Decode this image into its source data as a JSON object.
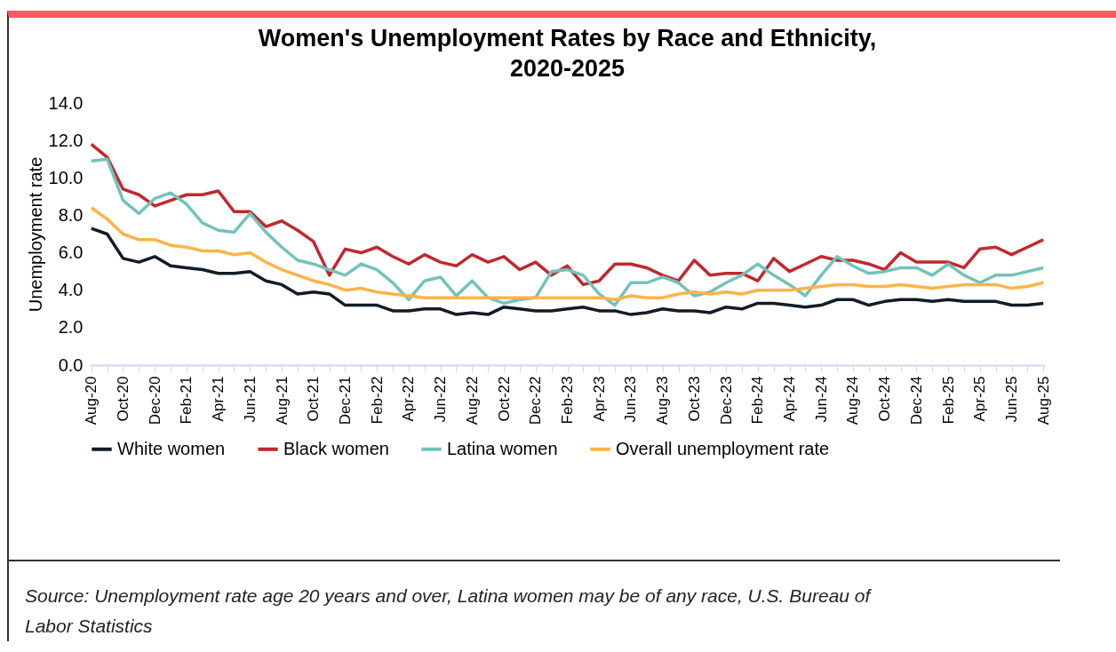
{
  "chart_data": {
    "type": "line",
    "title": "Women's Unemployment Rates by Race and Ethnicity, 2020-2025",
    "ylabel": "Unemployment rate",
    "categories": [
      "Aug-20",
      null,
      "Oct-20",
      null,
      "Dec-20",
      null,
      "Feb-21",
      null,
      "Apr-21",
      null,
      "Jun-21",
      null,
      "Aug-21",
      null,
      "Oct-21",
      null,
      "Dec-21",
      null,
      "Feb-22",
      null,
      "Apr-22",
      null,
      "Jun-22",
      null,
      "Aug-22",
      null,
      "Oct-22",
      null,
      "Dec-22",
      null,
      "Feb-23",
      null,
      "Apr-23",
      null,
      "Jun-23",
      null,
      "Aug-23",
      null,
      "Oct-23",
      null,
      "Dec-23",
      null,
      "Feb-24",
      null,
      "Apr-24",
      null,
      "Jun-24",
      null,
      "Aug-24",
      null,
      "Oct-24",
      null,
      "Dec-24",
      null,
      "Feb-25",
      null,
      "Apr-25",
      null,
      "Jun-25",
      null,
      "Aug-25"
    ],
    "series": [
      {
        "name": "White women",
        "color": "#111c26",
        "values": [
          7.3,
          7.0,
          5.7,
          5.5,
          5.8,
          5.3,
          5.2,
          5.1,
          4.9,
          4.9,
          5.0,
          4.5,
          4.3,
          3.8,
          3.9,
          3.8,
          3.2,
          3.2,
          3.2,
          2.9,
          2.9,
          3.0,
          3.0,
          2.7,
          2.8,
          2.7,
          3.1,
          3.0,
          2.9,
          2.9,
          3.0,
          3.1,
          2.9,
          2.9,
          2.7,
          2.8,
          3.0,
          2.9,
          2.9,
          2.8,
          3.1,
          3.0,
          3.3,
          3.3,
          3.2,
          3.1,
          3.2,
          3.5,
          3.5,
          3.2,
          3.4,
          3.5,
          3.5,
          3.4,
          3.5,
          3.4,
          3.4,
          3.4,
          3.2,
          3.2,
          3.3
        ]
      },
      {
        "name": "Black women",
        "color": "#c0282d",
        "values": [
          11.8,
          11.1,
          9.4,
          9.1,
          8.5,
          8.8,
          9.1,
          9.1,
          9.3,
          8.2,
          8.2,
          7.4,
          7.7,
          7.2,
          6.6,
          4.8,
          6.2,
          6.0,
          6.3,
          5.8,
          5.4,
          5.9,
          5.5,
          5.3,
          5.9,
          5.5,
          5.8,
          5.1,
          5.5,
          4.8,
          5.3,
          4.3,
          4.5,
          5.4,
          5.4,
          5.2,
          4.8,
          4.5,
          5.6,
          4.8,
          4.9,
          4.9,
          4.5,
          5.7,
          5.0,
          5.4,
          5.8,
          5.6,
          5.6,
          5.4,
          5.1,
          6.0,
          5.5,
          5.5,
          5.5,
          5.2,
          6.2,
          6.3,
          5.9,
          6.3,
          6.7
        ]
      },
      {
        "name": "Latina women",
        "color": "#72c3b8",
        "values": [
          10.9,
          11.0,
          8.8,
          8.1,
          8.9,
          9.2,
          8.6,
          7.6,
          7.2,
          7.1,
          8.1,
          7.1,
          6.3,
          5.6,
          5.4,
          5.1,
          4.8,
          5.4,
          5.1,
          4.4,
          3.5,
          4.5,
          4.7,
          3.7,
          4.5,
          3.6,
          3.3,
          3.5,
          3.6,
          5.0,
          5.1,
          4.8,
          3.8,
          3.2,
          4.4,
          4.4,
          4.7,
          4.4,
          3.7,
          3.9,
          4.4,
          4.8,
          5.4,
          4.8,
          4.3,
          3.7,
          4.8,
          5.8,
          5.3,
          4.9,
          5.0,
          5.2,
          5.2,
          4.8,
          5.4,
          4.8,
          4.4,
          4.8,
          4.8,
          5.0,
          5.2
        ]
      },
      {
        "name": "Overall unemployment rate",
        "color": "#ffb347",
        "values": [
          8.4,
          7.8,
          7.0,
          6.7,
          6.7,
          6.4,
          6.3,
          6.1,
          6.1,
          5.9,
          6.0,
          5.5,
          5.1,
          4.8,
          4.5,
          4.3,
          4.0,
          4.1,
          3.9,
          3.8,
          3.7,
          3.6,
          3.6,
          3.6,
          3.6,
          3.6,
          3.6,
          3.6,
          3.6,
          3.6,
          3.6,
          3.6,
          3.6,
          3.5,
          3.7,
          3.6,
          3.6,
          3.8,
          3.9,
          3.8,
          3.9,
          3.8,
          4.0,
          4.0,
          4.0,
          4.1,
          4.2,
          4.3,
          4.3,
          4.2,
          4.2,
          4.3,
          4.2,
          4.1,
          4.2,
          4.3,
          4.3,
          4.3,
          4.1,
          4.2,
          4.4
        ]
      }
    ],
    "ylim": [
      0,
      14
    ],
    "yticks": [
      {
        "value": 0,
        "label": "0.0"
      },
      {
        "value": 2,
        "label": "2.0"
      },
      {
        "value": 4,
        "label": "4.0"
      },
      {
        "value": 6,
        "label": "6.0"
      },
      {
        "value": 8,
        "label": "8.0"
      },
      {
        "value": 10,
        "label": "10.0"
      },
      {
        "value": 12,
        "label": "12.0"
      },
      {
        "value": 14,
        "label": "14.0"
      }
    ],
    "grid": false,
    "legend": "bottom",
    "marker": "none",
    "line_style": "solid",
    "annotations": [
      "Source: Unemployment rate age 20 years and over, Latina women may be of any race, U.S. Bureau of Labor Statistics"
    ]
  }
}
